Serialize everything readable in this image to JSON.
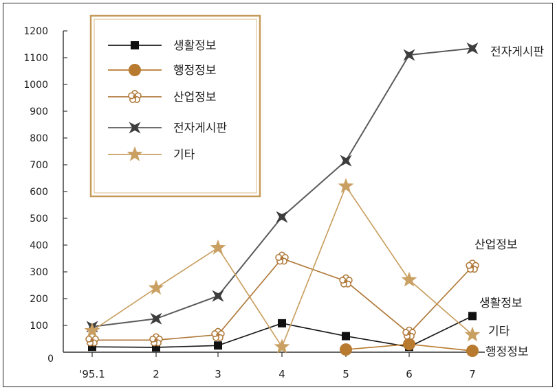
{
  "chart_data": {
    "type": "line",
    "categories": [
      "'95.1",
      "2",
      "3",
      "4",
      "5",
      "6",
      "7"
    ],
    "y_ticks": [
      "0",
      "100",
      "200",
      "300",
      "400",
      "500",
      "600",
      "700",
      "800",
      "900",
      "1000",
      "1100",
      "1200"
    ],
    "ylim": [
      0,
      1200
    ],
    "legend_position": "top-left",
    "series": [
      {
        "name": "생활정보",
        "color": "#1a1a1a",
        "marker": "square",
        "values": [
          20,
          18,
          25,
          108,
          60,
          20,
          135
        ],
        "end_label": "생활정보"
      },
      {
        "name": "행정정보",
        "color": "#b87a2e",
        "marker": "circle",
        "values": [
          null,
          null,
          null,
          null,
          10,
          30,
          5
        ],
        "end_label": "행정정보"
      },
      {
        "name": "산업정보",
        "color": "#b07a3c",
        "marker": "flower",
        "values": [
          45,
          45,
          65,
          350,
          265,
          70,
          320
        ],
        "end_label": "산업정보"
      },
      {
        "name": "전자게시판",
        "color": "#5a5a5a",
        "marker": "star4",
        "values": [
          95,
          125,
          210,
          505,
          715,
          1110,
          1135
        ],
        "end_label": "전자게시판"
      },
      {
        "name": "기타",
        "color": "#c9a062",
        "marker": "star5",
        "values": [
          80,
          240,
          390,
          20,
          620,
          270,
          65
        ],
        "end_label": "기타"
      }
    ]
  }
}
